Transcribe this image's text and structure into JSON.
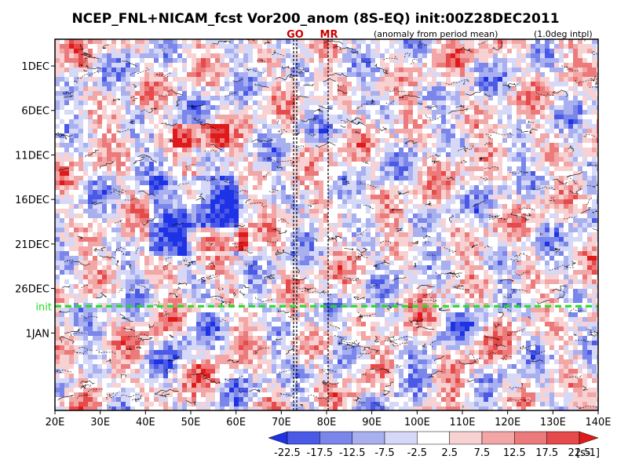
{
  "title": "NCEP_FNL+NICAM_fcst Vor200_anom (8S-EQ) init:00Z28DEC2011",
  "markers": {
    "go": "GO",
    "mr": "MR",
    "go_color": "#cc0000",
    "mr_color": "#cc0000"
  },
  "subtitle_left": "(anomaly from period mean)",
  "subtitle_right": "(1.0deg intpl)",
  "init_label": "init",
  "init_color": "#22dd22",
  "colorbar": {
    "unit": "[s-1]",
    "tick_labels": [
      "-22.5",
      "-17.5",
      "-12.5",
      "-7.5",
      "-2.5",
      "2.5",
      "7.5",
      "12.5",
      "17.5",
      "22.5"
    ],
    "colors": [
      "#1f33e6",
      "#4a5ae6",
      "#7b86ea",
      "#a9b0f0",
      "#d5d8f7",
      "#ffffff",
      "#f8d2d2",
      "#f2a6a6",
      "#ec7a7a",
      "#e64a4a",
      "#e01a1a"
    ]
  },
  "chart_data": {
    "type": "heatmap",
    "title": "NCEP_FNL+NICAM_fcst Vor200_anom (8S-EQ) init:00Z28DEC2011",
    "xlabel": "",
    "ylabel": "",
    "x_ticks": [
      "20E",
      "30E",
      "40E",
      "50E",
      "60E",
      "70E",
      "80E",
      "90E",
      "100E",
      "110E",
      "120E",
      "130E",
      "140E"
    ],
    "xlim": [
      20,
      140
    ],
    "y_ticks": [
      "1DEC",
      "6DEC",
      "11DEC",
      "16DEC",
      "21DEC",
      "26DEC",
      "1JAN"
    ],
    "ylim_days_from_1DEC": [
      -3,
      38.7
    ],
    "init_day_from_1DEC": 27,
    "go_lon": 73,
    "mr_lon": 80,
    "levels": [
      -22.5,
      -17.5,
      -12.5,
      -7.5,
      -2.5,
      2.5,
      7.5,
      12.5,
      17.5,
      22.5
    ],
    "unit": "[s-1]"
  }
}
